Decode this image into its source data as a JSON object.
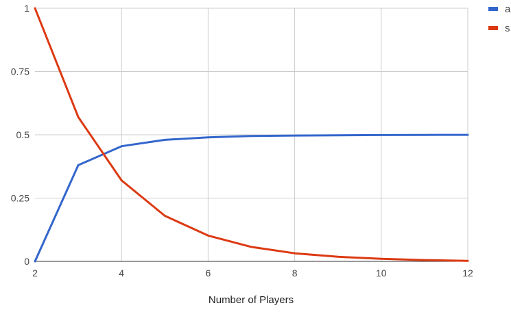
{
  "chart_data": {
    "type": "line",
    "title": "",
    "xlabel": "Number of Players",
    "ylabel": "",
    "xlim": [
      2,
      12
    ],
    "ylim": [
      0,
      1
    ],
    "x_ticks": [
      2,
      4,
      6,
      8,
      10,
      12
    ],
    "x_tick_labels": [
      "2",
      "4",
      "6",
      "8",
      "10",
      "12"
    ],
    "y_ticks": [
      0,
      0.25,
      0.5,
      0.75,
      1
    ],
    "y_tick_labels": [
      "0",
      "0.25",
      "0.5",
      "0.75",
      "1"
    ],
    "grid": true,
    "legend_position": "right",
    "x": [
      2,
      3,
      4,
      5,
      6,
      7,
      8,
      9,
      10,
      11,
      12
    ],
    "series": [
      {
        "name": "a",
        "color": "#3366cc",
        "values": [
          0,
          0.38,
          0.455,
          0.48,
          0.49,
          0.495,
          0.497,
          0.498,
          0.499,
          0.4995,
          0.4998
        ]
      },
      {
        "name": "s",
        "color": "#dc3912",
        "values": [
          1,
          0.57,
          0.32,
          0.18,
          0.102,
          0.057,
          0.032,
          0.018,
          0.01,
          0.005,
          0.002
        ]
      }
    ]
  }
}
